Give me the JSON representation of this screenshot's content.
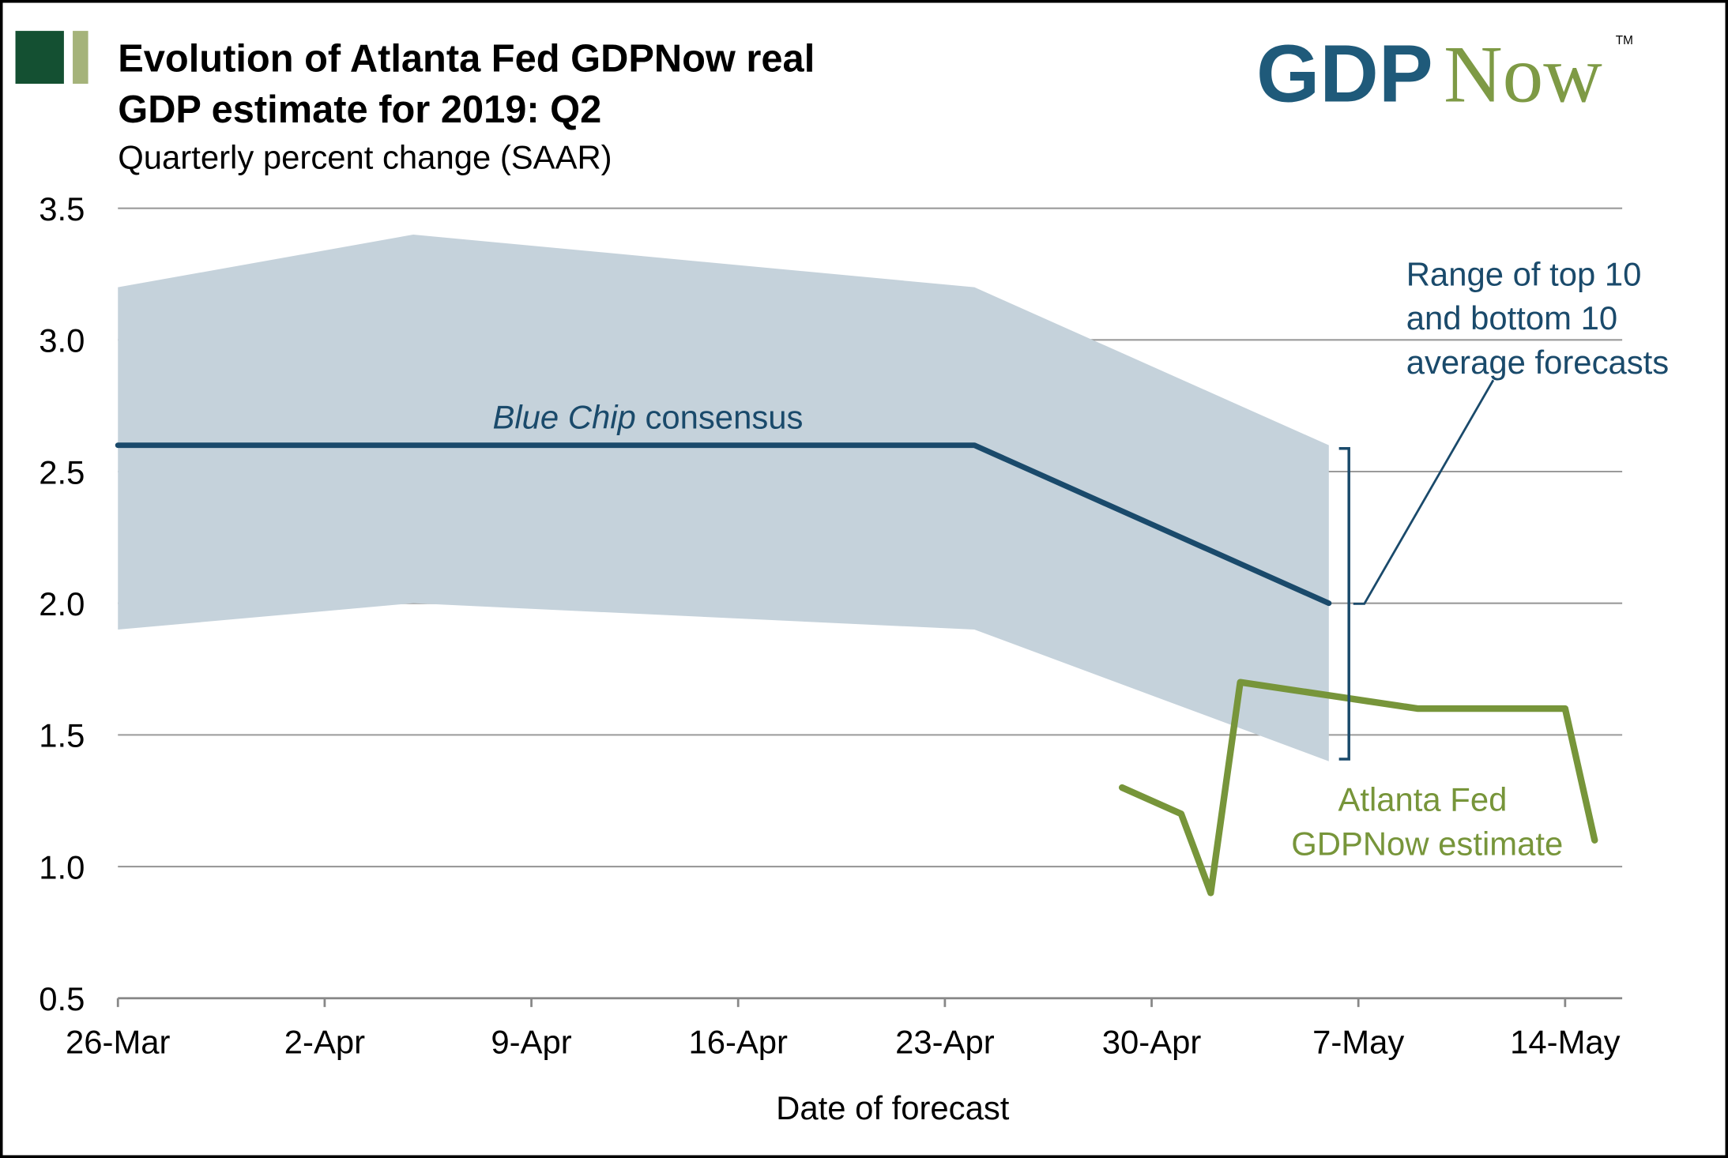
{
  "title_line1": "Evolution of Atlanta Fed GDPNow real",
  "title_line2": "GDP estimate for 2019: Q2",
  "subtitle": "Quarterly percent change (SAAR)",
  "logo": {
    "part1": "GDP",
    "part2": "Now",
    "tm": "TM",
    "color1": "#1f5a7a",
    "color2": "#7e9a45"
  },
  "colors": {
    "band": "#c5d2db",
    "bluechip": "#1a4a6b",
    "gdpnow": "#77953a",
    "grid": "#9a9a9a",
    "accent_dark": "#145032",
    "accent_light": "#a5b37a"
  },
  "chart_data": {
    "type": "line",
    "title": "Evolution of Atlanta Fed GDPNow real GDP estimate for 2019: Q2",
    "xlabel": "Date of forecast",
    "ylabel": "Quarterly percent change (SAAR)",
    "ylim": [
      0.5,
      3.5
    ],
    "yticks": [
      "0.5",
      "1.0",
      "1.5",
      "2.0",
      "2.5",
      "3.0",
      "3.5"
    ],
    "xticks": [
      "26-Mar",
      "2-Apr",
      "9-Apr",
      "16-Apr",
      "23-Apr",
      "30-Apr",
      "7-May",
      "14-May"
    ],
    "x_unit": "days since 26-Mar",
    "grid": true,
    "band": {
      "name": "Range of top 10 and bottom 10 average forecasts",
      "x": [
        0,
        10,
        29,
        41
      ],
      "upper": [
        3.2,
        3.4,
        3.2,
        2.6
      ],
      "lower": [
        1.9,
        2.0,
        1.9,
        1.4
      ]
    },
    "series": [
      {
        "name": "Blue Chip consensus",
        "x": [
          0,
          29,
          41
        ],
        "values": [
          2.6,
          2.6,
          2.0
        ]
      },
      {
        "name": "Atlanta Fed GDPNow estimate",
        "x": [
          34,
          36,
          37,
          38,
          44,
          49,
          50
        ],
        "values": [
          1.3,
          1.2,
          0.9,
          1.7,
          1.6,
          1.6,
          1.1
        ]
      }
    ],
    "annotations": {
      "bluechip_italic": "Blue Chip",
      "bluechip_rest": " consensus",
      "range_lines": [
        "Range of top 10",
        "and bottom 10",
        "average forecasts"
      ],
      "gdpnow_lines": [
        "Atlanta Fed",
        "GDPNow estimate"
      ]
    }
  }
}
